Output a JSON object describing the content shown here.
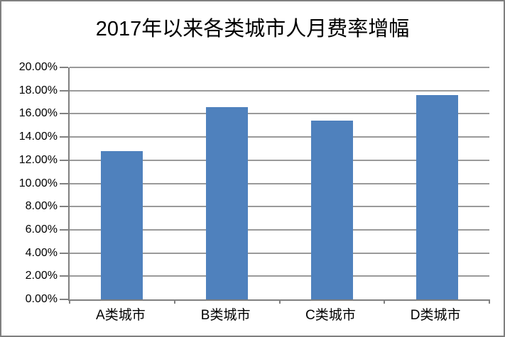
{
  "chart_data": {
    "type": "bar",
    "title": "2017年以来各类城市人月费率增幅",
    "categories": [
      "A类城市",
      "B类城市",
      "C类城市",
      "D类城市"
    ],
    "values": [
      12.8,
      16.6,
      15.4,
      17.6
    ],
    "value_unit": "percent",
    "ylim": [
      0,
      20
    ],
    "ytick_step": 2,
    "ytick_labels_top_down": [
      "20.00%",
      "18.00%",
      "16.00%",
      "14.00%",
      "12.00%",
      "10.00%",
      "8.00%",
      "6.00%",
      "4.00%",
      "2.00%",
      "0.00%"
    ],
    "xlabel": "",
    "ylabel": "",
    "grid": true,
    "legend": "none",
    "bar_color": "#4f81bd",
    "gridline_color": "#9a9a9a",
    "axis_color": "#808080",
    "text_color": "#000000"
  }
}
